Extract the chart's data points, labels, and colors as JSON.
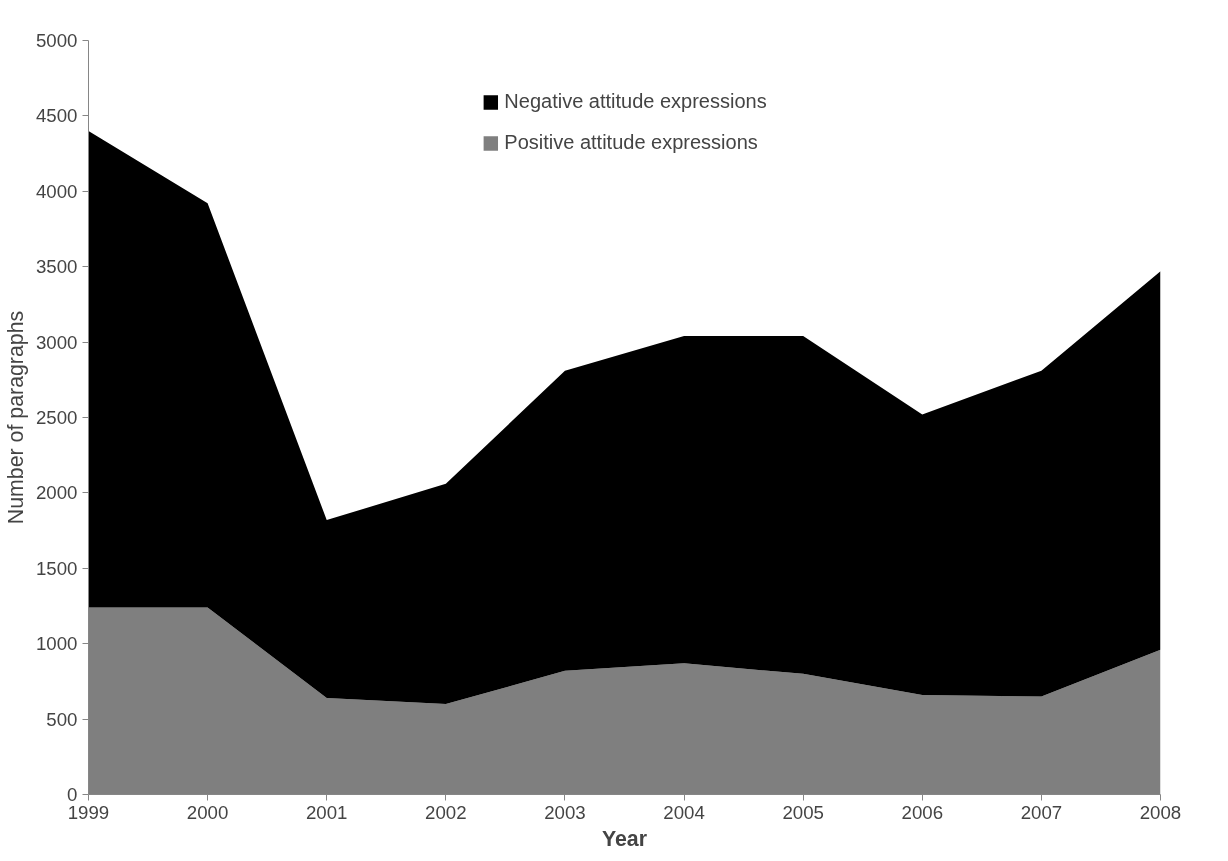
{
  "chart_data": {
    "type": "area",
    "stacked": true,
    "xlabel": "Year",
    "ylabel": "Number of paragraphs",
    "x": [
      1999,
      2000,
      2001,
      2002,
      2003,
      2004,
      2005,
      2006,
      2007,
      2008
    ],
    "xlim": [
      1999,
      2008
    ],
    "xticks": [
      1999,
      2000,
      2001,
      2002,
      2003,
      2004,
      2005,
      2006,
      2007,
      2008
    ],
    "ylim": [
      0,
      5000
    ],
    "yticks": [
      0,
      500,
      1000,
      1500,
      2000,
      2500,
      3000,
      3500,
      4000,
      4500,
      5000
    ],
    "grid": false,
    "legend": "top",
    "series": [
      {
        "name": "Positive attitude expressions",
        "color": "#7f7f7f",
        "values": [
          1240,
          1240,
          640,
          600,
          820,
          870,
          800,
          660,
          650,
          960
        ]
      },
      {
        "name": "Negative attitude expressions",
        "color": "#000000",
        "values": [
          3160,
          2680,
          1180,
          1460,
          1990,
          2170,
          2240,
          1860,
          2160,
          2510
        ]
      }
    ]
  }
}
